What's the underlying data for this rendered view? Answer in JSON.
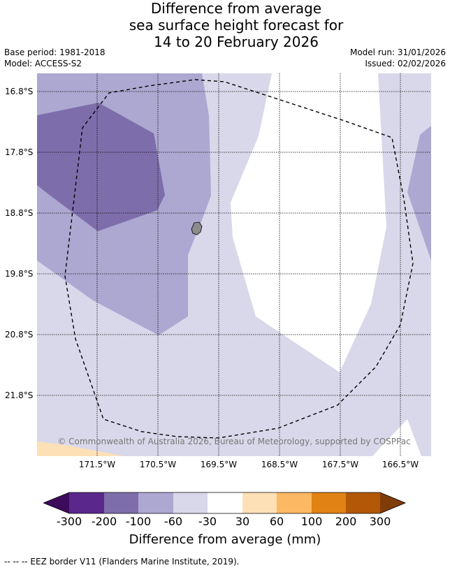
{
  "title": {
    "line1": "Difference from average",
    "line2": "sea surface height forecast for",
    "line3": "14 to 20 February 2026"
  },
  "meta": {
    "base_period": "Base period: 1981-2018",
    "model": "Model: ACCESS-S2",
    "model_run": "Model run: 31/01/2026",
    "issued": "Issued: 02/02/2026"
  },
  "map": {
    "lat_labels": [
      "16.8°S",
      "17.8°S",
      "18.8°S",
      "19.8°S",
      "20.8°S",
      "21.8°S"
    ],
    "lon_labels": [
      "171.5°W",
      "170.5°W",
      "169.5°W",
      "168.5°W",
      "167.5°W",
      "166.5°W"
    ],
    "copyright": "© Commonwealth of Australia 2026, Bureau of Meteorology, supported by COSPPac",
    "island_color": "#8c8c8c"
  },
  "colorbar": {
    "ticks": [
      "-300",
      "-200",
      "-100",
      "-60",
      "-30",
      "30",
      "60",
      "100",
      "200",
      "300"
    ],
    "colors": {
      "below_min": "#3d0b5c",
      "n300_n200": "#5a288c",
      "n200_n100": "#7d6eab",
      "n100_n60": "#ada8d1",
      "n60_n30": "#d8d8ea",
      "n30_30": "#ffffff",
      "p30_60": "#fee0b6",
      "p60_100": "#fcb862",
      "p100_200": "#e08214",
      "p200_300": "#b35806",
      "above_max": "#7f3b08"
    },
    "label": "Difference from average (mm)"
  },
  "footer": "--  --  -- EEZ border V11 (Flanders Marine Institute, 2019)."
}
